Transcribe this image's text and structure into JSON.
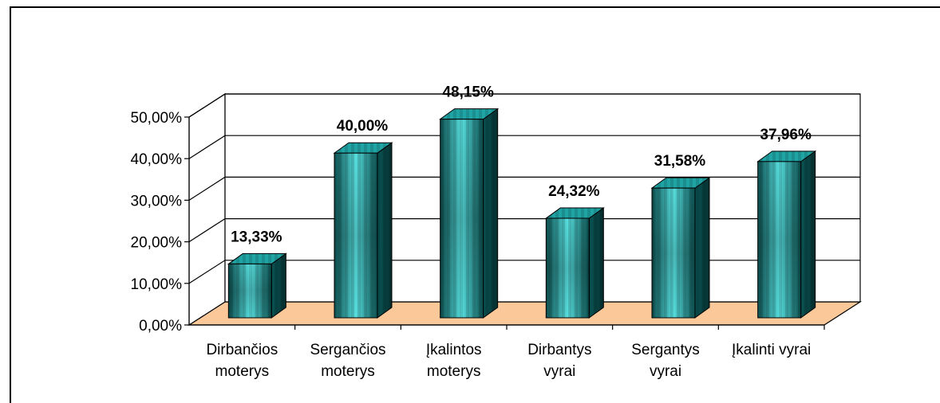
{
  "chart_data": {
    "type": "bar",
    "three_d": true,
    "categories": [
      [
        "Dirbančios",
        "moterys"
      ],
      [
        "Sergančios",
        "moterys"
      ],
      [
        "Įkalintos",
        "moterys"
      ],
      [
        "Dirbantys",
        "vyrai"
      ],
      [
        "Sergantys",
        "vyrai"
      ],
      [
        "Įkalinti vyrai"
      ]
    ],
    "values": [
      13.33,
      40.0,
      48.15,
      24.32,
      31.58,
      37.96
    ],
    "data_labels": [
      "13,33%",
      "40,00%",
      "48,15%",
      "24,32%",
      "31,58%",
      "37,96%"
    ],
    "y_ticks": [
      "0,00%",
      "10,00%",
      "20,00%",
      "30,00%",
      "40,00%",
      "50,00%"
    ],
    "ylim": [
      0,
      50
    ],
    "grid": true,
    "legend": "none",
    "colors": {
      "bar_front": "#1fa3a3",
      "bar_light": "#56dede",
      "bar_dark": "#0a3f3f",
      "floor": "#fbc89a",
      "grid": "#000000"
    }
  }
}
